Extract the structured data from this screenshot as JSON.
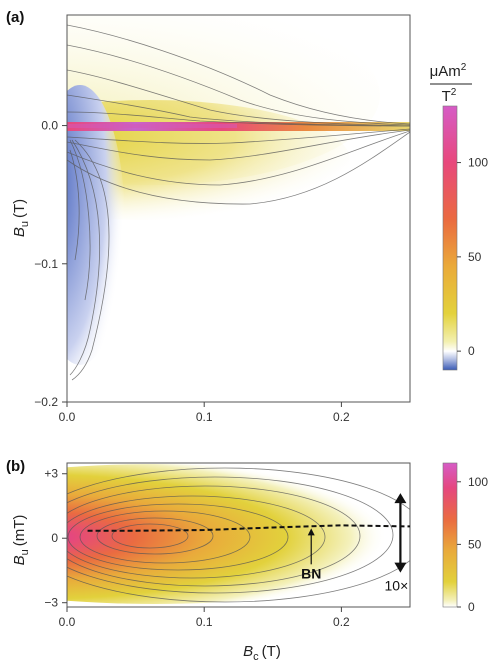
{
  "chart_data": [
    {
      "panel": "(a)",
      "type": "heatmap",
      "xlabel": {
        "symbol": "B",
        "sub": "c",
        "unit": "(T)"
      },
      "ylabel": {
        "symbol": "B",
        "sub": "u",
        "unit": "(T)"
      },
      "xlim": [
        0,
        0.25
      ],
      "ylim": [
        -0.2,
        0.08
      ],
      "x_ticks": [
        0.0,
        0.1,
        0.2
      ],
      "x_tick_labels": [
        "0.0",
        "0.1",
        "0.2"
      ],
      "y_ticks": [
        0.0,
        -0.1,
        -0.2
      ],
      "y_tick_labels": [
        "0.0",
        "−0.1",
        "−0.2"
      ],
      "colorbar": {
        "unit_numerator": "μAm",
        "unit_numerator_sup": "2",
        "unit_denominator": "T",
        "unit_denominator_sup": "2",
        "range": [
          -10,
          130
        ],
        "ticks": [
          100,
          50,
          0
        ],
        "tick_labels": [
          "100",
          "50",
          "0"
        ],
        "stops": [
          {
            "v": -10,
            "color": "#3a5bb5"
          },
          {
            "v": -4,
            "color": "#b9c4e6"
          },
          {
            "v": 0,
            "color": "#ffffff"
          },
          {
            "v": 5,
            "color": "#f3f0b0"
          },
          {
            "v": 20,
            "color": "#e3d23c"
          },
          {
            "v": 45,
            "color": "#eaaa3a"
          },
          {
            "v": 70,
            "color": "#ea6a40"
          },
          {
            "v": 100,
            "color": "#e8487c"
          },
          {
            "v": 130,
            "color": "#d65cc6"
          }
        ]
      },
      "features": [
        {
          "kind": "ridge",
          "bu": 0.0,
          "bc_range": [
            0.0,
            0.25
          ],
          "peak_value": 125,
          "peak_bc": 0.05
        },
        {
          "kind": "positive_lobe",
          "bu_range": [
            -0.06,
            0.0
          ],
          "bc_range": [
            0.0,
            0.2
          ],
          "max_value": 25
        },
        {
          "kind": "positive_lobe",
          "bu_range": [
            0.0,
            0.06
          ],
          "bc_range": [
            0.0,
            0.2
          ],
          "max_value": 5
        },
        {
          "kind": "negative_lobe",
          "bu_range": [
            -0.18,
            0.0
          ],
          "bc_range": [
            0.0,
            0.03
          ],
          "min_value": -8
        }
      ]
    },
    {
      "panel": "(b)",
      "type": "heatmap",
      "xlabel": {
        "symbol": "B",
        "sub": "c",
        "unit": "(T)"
      },
      "ylabel": {
        "symbol": "B",
        "sub": "u",
        "unit": "(mT)"
      },
      "xlim": [
        0,
        0.25
      ],
      "ylim": [
        -3.2,
        3.5
      ],
      "x_ticks": [
        0.0,
        0.1,
        0.2
      ],
      "x_tick_labels": [
        "0.0",
        "0.1",
        "0.2"
      ],
      "y_ticks": [
        3,
        0,
        -3
      ],
      "y_tick_labels": [
        "+3",
        "0",
        "−3"
      ],
      "colorbar": {
        "range": [
          0,
          115
        ],
        "ticks": [
          100,
          50,
          0
        ],
        "tick_labels": [
          "100",
          "50",
          "0"
        ],
        "stops": [
          {
            "v": 0,
            "color": "#ffffff"
          },
          {
            "v": 5,
            "color": "#f4f1bd"
          },
          {
            "v": 20,
            "color": "#e2d13c"
          },
          {
            "v": 45,
            "color": "#e9aa3b"
          },
          {
            "v": 70,
            "color": "#ea6b41"
          },
          {
            "v": 95,
            "color": "#e5477f"
          },
          {
            "v": 115,
            "color": "#d65cc6"
          }
        ]
      },
      "peak": {
        "bc": 0.055,
        "bu": 0.4,
        "value": 110
      },
      "median_line": {
        "label": "BN",
        "style": "dashed",
        "points": [
          [
            0.015,
            0.35
          ],
          [
            0.05,
            0.35
          ],
          [
            0.1,
            0.38
          ],
          [
            0.15,
            0.5
          ],
          [
            0.2,
            0.6
          ],
          [
            0.25,
            0.55
          ]
        ]
      },
      "annotation_arrow": {
        "label": "10×",
        "bc": 0.243,
        "bu_range": [
          -1.6,
          2.1
        ]
      },
      "bn_label_pos": {
        "bc": 0.178,
        "bu": -1.4
      }
    }
  ]
}
